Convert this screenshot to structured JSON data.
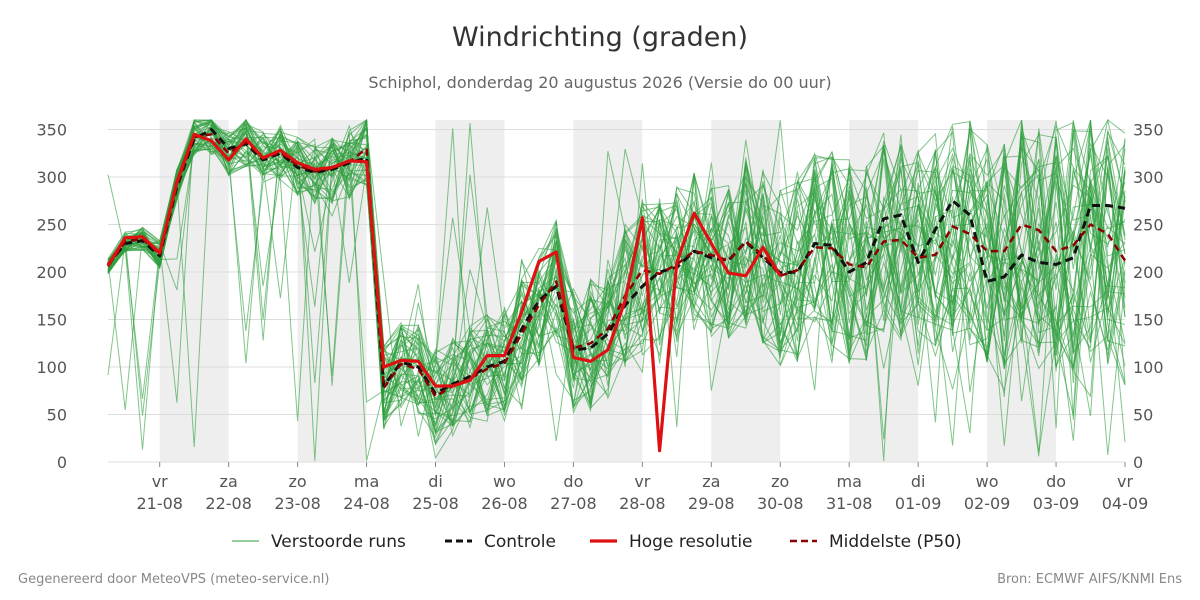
{
  "title": "Windrichting (graden)",
  "subtitle": "Schiphol, donderdag 20 augustus 2026 (Versie do 00 uur)",
  "footer_left": "Gegenereerd door MeteoVPS (meteo-service.nl)",
  "footer_right": "Bron: ECMWF AIFS/KNMI Ens",
  "colors": {
    "ensemble": "#2e9e3e",
    "control": "#111111",
    "highres": "#dd1111",
    "median": "#8b0000",
    "night_band": "#eeeeee",
    "grid": "#dddddd"
  },
  "chart_data": {
    "type": "line",
    "ylabel": "",
    "xlabel": "",
    "ylim": [
      0,
      360
    ],
    "xlim": [
      -0.75,
      14
    ],
    "x_unit": "days after 21-08 00:00",
    "yticks": [
      0,
      50,
      100,
      150,
      200,
      250,
      300,
      350
    ],
    "grid": true,
    "legend_position": "bottom",
    "night_bands": [
      [
        0,
        1
      ],
      [
        2,
        3
      ],
      [
        4,
        5
      ],
      [
        6,
        7
      ],
      [
        8,
        9
      ],
      [
        10,
        11
      ],
      [
        12,
        13
      ]
    ],
    "xticks": [
      {
        "day": "vr",
        "date": "21-08"
      },
      {
        "day": "za",
        "date": "22-08"
      },
      {
        "day": "zo",
        "date": "23-08"
      },
      {
        "day": "ma",
        "date": "24-08"
      },
      {
        "day": "di",
        "date": "25-08"
      },
      {
        "day": "wo",
        "date": "26-08"
      },
      {
        "day": "do",
        "date": "27-08"
      },
      {
        "day": "vr",
        "date": "28-08"
      },
      {
        "day": "za",
        "date": "29-08"
      },
      {
        "day": "zo",
        "date": "30-08"
      },
      {
        "day": "ma",
        "date": "31-08"
      },
      {
        "day": "di",
        "date": "01-09"
      },
      {
        "day": "wo",
        "date": "02-09"
      },
      {
        "day": "do",
        "date": "03-09"
      },
      {
        "day": "vr",
        "date": "04-09"
      }
    ],
    "legend": [
      {
        "label": "Verstoorde runs",
        "key": "ensemble"
      },
      {
        "label": "Controle",
        "key": "control"
      },
      {
        "label": "Hoge resolutie",
        "key": "highres"
      },
      {
        "label": "Middelste (P50)",
        "key": "median"
      }
    ],
    "series": [
      {
        "name": "Hoge resolutie",
        "key": "highres",
        "x": [
          -0.75,
          -0.5,
          -0.25,
          0,
          0.25,
          0.5,
          0.75,
          1,
          1.25,
          1.5,
          1.75,
          2,
          2.25,
          2.5,
          2.75,
          3,
          3.25,
          3.5,
          3.75,
          4,
          4.25,
          4.5,
          4.75,
          5,
          5.25,
          5.5,
          5.75,
          6,
          6.25,
          6.5,
          6.75,
          7,
          7.25,
          7.5,
          7.75,
          8,
          8.25,
          8.5,
          8.75,
          9
        ],
        "y": [
          207,
          236,
          237,
          220,
          295,
          345,
          338,
          318,
          340,
          320,
          328,
          315,
          308,
          310,
          317,
          316,
          100,
          107,
          106,
          80,
          80,
          86,
          112,
          112,
          158,
          211,
          221,
          110,
          106,
          118,
          170,
          257,
          12,
          210,
          262,
          230,
          199,
          196,
          226,
          196
        ]
      },
      {
        "name": "Controle",
        "key": "control",
        "x": [
          -0.75,
          -0.5,
          -0.25,
          0,
          0.25,
          0.5,
          0.75,
          1,
          1.25,
          1.5,
          1.75,
          2,
          2.25,
          2.5,
          2.75,
          3,
          3.25,
          3.5,
          3.75,
          4,
          4.25,
          4.5,
          4.75,
          5,
          5.25,
          5.5,
          5.75,
          6,
          6.25,
          6.5,
          6.75,
          7,
          7.25,
          7.5,
          7.75,
          8,
          8.25,
          8.5,
          8.75,
          9,
          9.25,
          9.5,
          9.75,
          10,
          10.25,
          10.5,
          10.75,
          11,
          11.25,
          11.5,
          11.75,
          12,
          12.25,
          12.5,
          12.75,
          13,
          13.25,
          13.5,
          13.75,
          14
        ],
        "y": [
          208,
          230,
          233,
          217,
          290,
          340,
          350,
          330,
          335,
          318,
          325,
          310,
          305,
          308,
          315,
          320,
          80,
          105,
          100,
          72,
          82,
          90,
          100,
          106,
          140,
          170,
          185,
          118,
          120,
          135,
          165,
          185,
          200,
          205,
          222,
          215,
          212,
          232,
          215,
          199,
          200,
          230,
          228,
          200,
          210,
          256,
          260,
          210,
          245,
          275,
          260,
          190,
          195,
          218,
          210,
          208,
          215,
          270,
          270,
          267
        ]
      },
      {
        "name": "Middelste (P50)",
        "key": "median",
        "x": [
          -0.75,
          -0.5,
          -0.25,
          0,
          0.25,
          0.5,
          0.75,
          1,
          1.25,
          1.5,
          1.75,
          2,
          2.25,
          2.5,
          2.75,
          3,
          3.25,
          3.5,
          3.75,
          4,
          4.25,
          4.5,
          4.75,
          5,
          5.25,
          5.5,
          5.75,
          6,
          6.25,
          6.5,
          6.75,
          7,
          7.25,
          7.5,
          7.75,
          8,
          8.25,
          8.5,
          8.75,
          9,
          9.25,
          9.5,
          9.75,
          10,
          10.25,
          10.5,
          10.75,
          11,
          11.25,
          11.5,
          11.75,
          12,
          12.25,
          12.5,
          12.75,
          13,
          13.25,
          13.5,
          13.75,
          14
        ],
        "y": [
          206,
          232,
          235,
          219,
          292,
          342,
          345,
          325,
          337,
          320,
          326,
          312,
          306,
          309,
          316,
          330,
          78,
          103,
          98,
          69,
          80,
          88,
          98,
          104,
          135,
          165,
          190,
          120,
          125,
          140,
          175,
          202,
          198,
          208,
          222,
          218,
          212,
          232,
          218,
          196,
          202,
          226,
          225,
          208,
          205,
          232,
          234,
          215,
          218,
          248,
          240,
          222,
          222,
          250,
          244,
          222,
          228,
          250,
          240,
          212
        ]
      }
    ]
  }
}
